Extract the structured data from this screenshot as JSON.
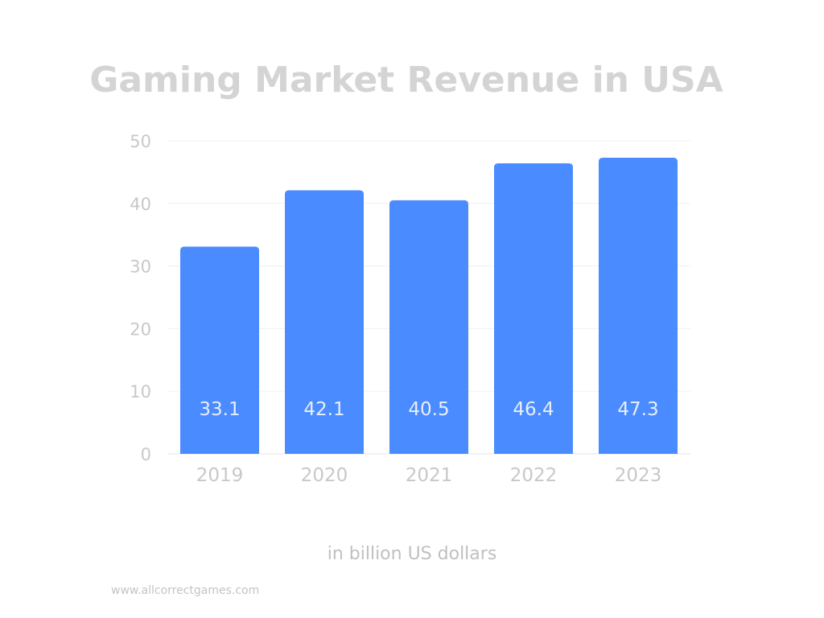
{
  "chart_data": {
    "type": "bar",
    "title": "Gaming Market Revenue in USA",
    "categories": [
      "2019",
      "2020",
      "2021",
      "2022",
      "2023"
    ],
    "values": [
      33.1,
      42.1,
      40.5,
      46.4,
      47.3
    ],
    "value_labels": [
      "33.1",
      "42.1",
      "40.5",
      "46.4",
      "47.3"
    ],
    "ylim": [
      0,
      50
    ],
    "yticks": [
      0,
      10,
      20,
      30,
      40,
      50
    ],
    "grid": true,
    "xlabel": "",
    "ylabel": "",
    "unit_label": "in billion US dollars",
    "bar_color": "#4a8cff",
    "label_color": "#e8eefc"
  },
  "source": "www.allcorrectgames.com"
}
